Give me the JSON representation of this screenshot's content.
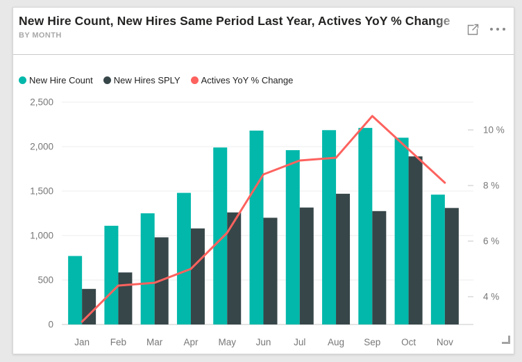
{
  "card": {
    "title": "New Hire Count, New Hires Same Period Last Year, Actives YoY % Change",
    "subtitle": "BY MONTH",
    "header_icons": [
      {
        "name": "focus-mode-icon"
      },
      {
        "name": "more-options-icon",
        "glyph": "..."
      }
    ]
  },
  "colors": {
    "teal": "#01B8AA",
    "dark": "#374649",
    "red": "#FD625E",
    "axis_text": "#777777",
    "gridline": "#ececec",
    "axis_line": "#c8c8c8",
    "tick_dash": "#d9d9d9",
    "legend_text": "#212121"
  },
  "chart_data": {
    "type": "combo-bar-line",
    "title": "New Hire Count, New Hires Same Period Last Year, Actives YoY % Change by Month",
    "categories": [
      "Jan",
      "Feb",
      "Mar",
      "Apr",
      "May",
      "Jun",
      "Jul",
      "Aug",
      "Sep",
      "Oct",
      "Nov"
    ],
    "series": [
      {
        "name": "New Hire Count",
        "kind": "bar",
        "axis": "left",
        "color": "#01B8AA",
        "values": [
          770,
          1110,
          1250,
          1480,
          1990,
          2180,
          1960,
          2185,
          2210,
          2100,
          1460
        ]
      },
      {
        "name": "New Hires SPLY",
        "kind": "bar",
        "axis": "left",
        "color": "#374649",
        "values": [
          400,
          585,
          980,
          1080,
          1260,
          1200,
          1315,
          1470,
          1275,
          1890,
          1310
        ]
      },
      {
        "name": "Actives YoY % Change",
        "kind": "line",
        "axis": "right",
        "color": "#FD625E",
        "values": [
          3.1,
          4.4,
          4.5,
          5.0,
          6.3,
          8.4,
          8.9,
          9.0,
          10.5,
          9.3,
          8.1
        ]
      }
    ],
    "left_axis": {
      "min": 0,
      "max": 2500,
      "tick_values": [
        0,
        500,
        1000,
        1500,
        2000,
        2500
      ],
      "tick_labels": [
        "0",
        "500",
        "1,000",
        "1,500",
        "2,000",
        "2,500"
      ]
    },
    "right_axis": {
      "min": 3,
      "max": 11,
      "tick_values": [
        4,
        6,
        8,
        10
      ],
      "tick_labels": [
        "4 %",
        "6 %",
        "8 %",
        "10 %"
      ]
    },
    "grid": true,
    "legend_position": "top"
  }
}
